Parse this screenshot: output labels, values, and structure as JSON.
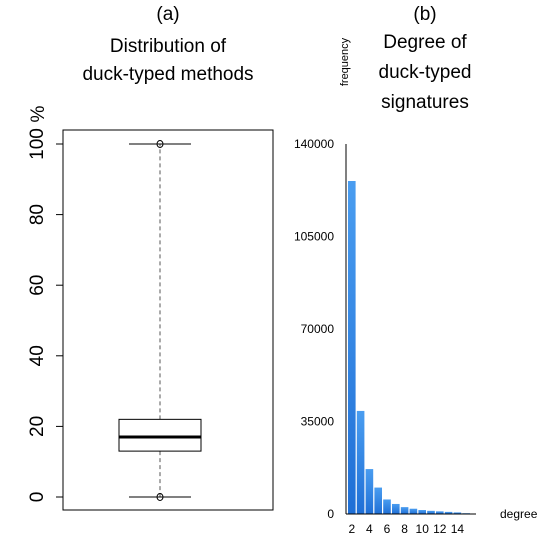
{
  "figure": {
    "panel_a_label": "(a)",
    "panel_b_label": "(b)"
  },
  "chart_data": [
    {
      "type": "boxplot",
      "title": [
        "Distribution of",
        "duck-typed methods"
      ],
      "ylabel": "%",
      "ylim": [
        0,
        100
      ],
      "yticks": [
        0,
        20,
        40,
        60,
        80,
        100
      ],
      "box": {
        "min": 0,
        "q1": 13,
        "median": 17,
        "q3": 22,
        "max": 100
      },
      "outliers": [
        0,
        100
      ],
      "colors": {
        "box_fill": "#ffffff",
        "stroke": "#000000",
        "whisker": "#555555"
      }
    },
    {
      "type": "bar",
      "title": [
        "Degree of",
        "duck-typed",
        "signatures"
      ],
      "xlabel": "degree",
      "ylabel": "frequency",
      "ylim": [
        0,
        140000
      ],
      "yticks": [
        0,
        35000,
        70000,
        105000,
        140000
      ],
      "x": [
        2,
        3,
        4,
        5,
        6,
        7,
        8,
        9,
        10,
        11,
        12,
        13,
        14,
        15
      ],
      "xtick_labels": [
        "2",
        "4",
        "6",
        "8",
        "10",
        "12",
        "14"
      ],
      "values": [
        126000,
        39000,
        17000,
        10000,
        5500,
        3800,
        2600,
        2000,
        1500,
        1200,
        1000,
        800,
        600,
        300
      ],
      "colors": {
        "bar_top": "#4a9df0",
        "bar_bottom": "#1f6fd6"
      }
    }
  ]
}
